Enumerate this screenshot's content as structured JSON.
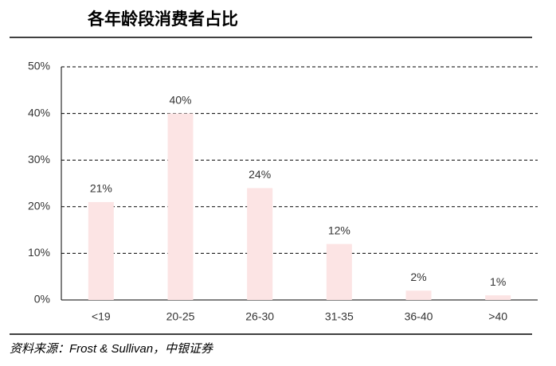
{
  "chart_data": {
    "type": "bar",
    "title": "各年龄段消费者占比",
    "categories": [
      "<19",
      "20-25",
      "26-30",
      "31-35",
      "36-40",
      ">40"
    ],
    "values": [
      21,
      40,
      24,
      12,
      2,
      1
    ],
    "value_labels": [
      "21%",
      "40%",
      "24%",
      "12%",
      "2%",
      "1%"
    ],
    "color": "#fce4e4",
    "ylim": [
      0,
      50
    ],
    "yticks": [
      {
        "value": 0,
        "label": "0%"
      },
      {
        "value": 10,
        "label": "10%"
      },
      {
        "value": 20,
        "label": "20%"
      },
      {
        "value": 30,
        "label": "30%"
      },
      {
        "value": 40,
        "label": "40%"
      },
      {
        "value": 50,
        "label": "50%"
      }
    ],
    "grid": true,
    "source": "资料来源：Frost & Sullivan，中银证券"
  }
}
